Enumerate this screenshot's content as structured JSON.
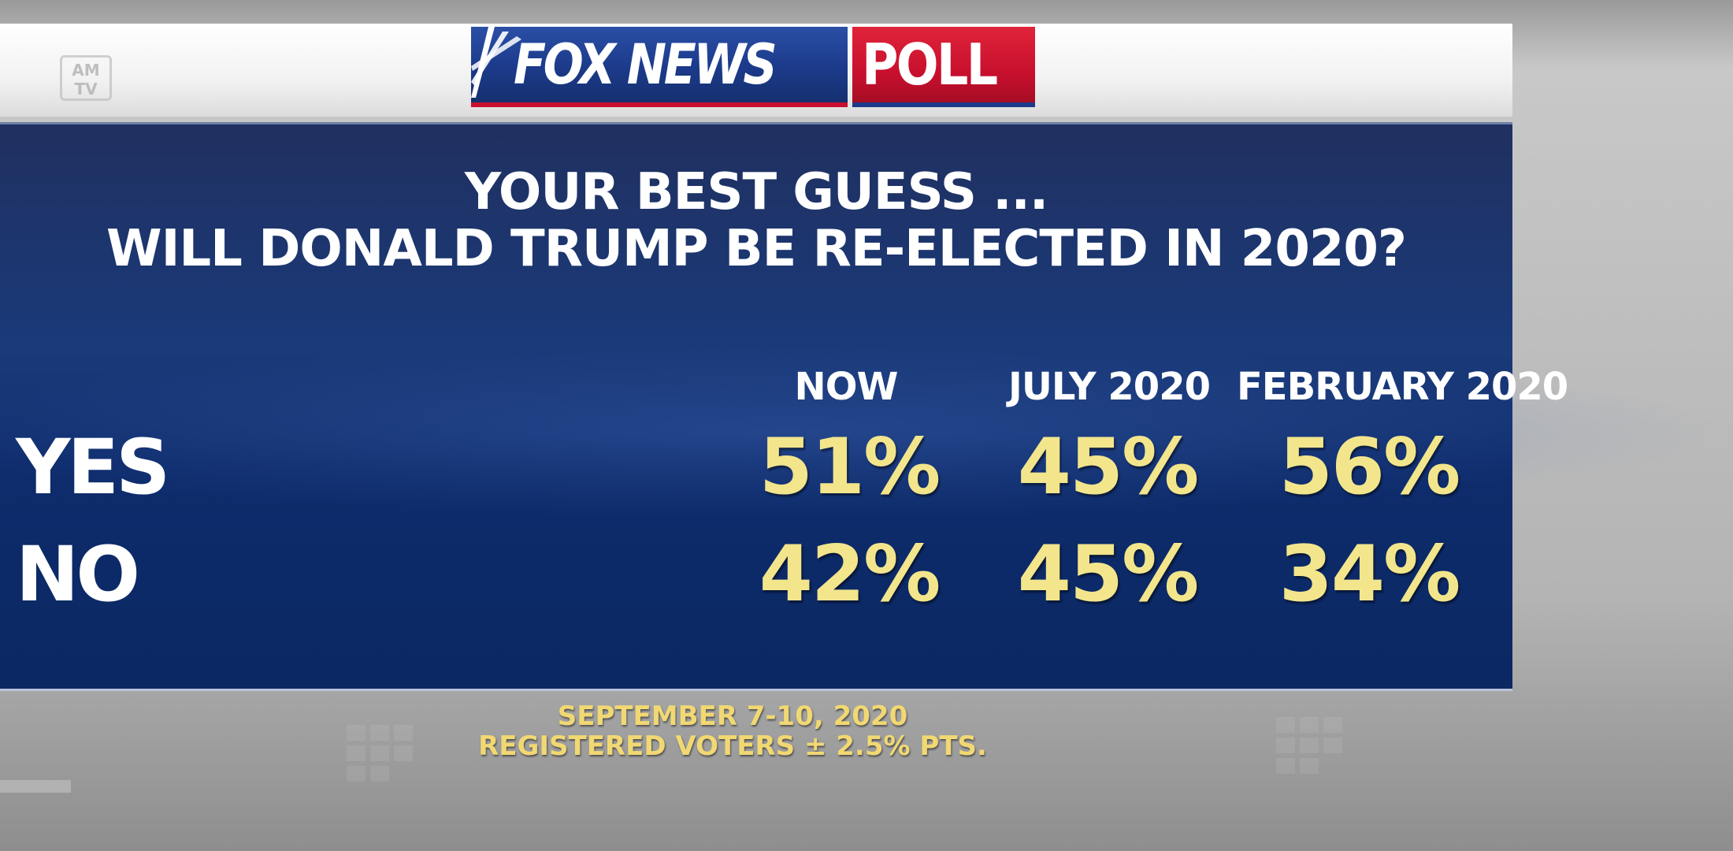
{
  "corner_bug": "AM TV",
  "logo": {
    "fox_news": "FOX NEWS",
    "poll": "POLL"
  },
  "colors": {
    "panel_blue": "#0e2c6c",
    "value_yellow": "#f2e58c",
    "footer_yellow": "#f1d873",
    "logo_blue": "#1c3a8a",
    "logo_red": "#c8102e"
  },
  "chart_data": {
    "type": "table",
    "title_line1": "YOUR BEST GUESS ...",
    "title_line2": "WILL DONALD TRUMP BE RE-ELECTED IN 2020?",
    "columns": [
      "NOW",
      "JULY 2020",
      "FEBRUARY 2020"
    ],
    "rows": [
      {
        "label": "YES",
        "values": [
          "51%",
          "45%",
          "56%"
        ]
      },
      {
        "label": "NO",
        "values": [
          "42%",
          "45%",
          "34%"
        ]
      }
    ]
  },
  "footer": {
    "dates": "SEPTEMBER 7-10, 2020",
    "sample": "REGISTERED VOTERS ± 2.5% PTS."
  }
}
